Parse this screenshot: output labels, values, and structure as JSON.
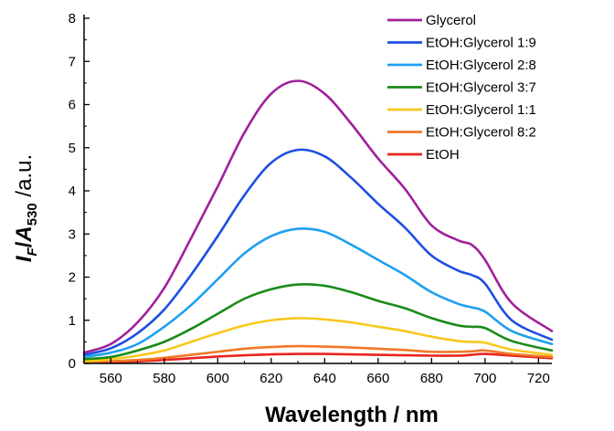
{
  "chart_data": {
    "type": "line",
    "xlabel": "Wavelength / nm",
    "ylabel": {
      "prefix": "I",
      "prefix_sub": "F",
      "slash": "/",
      "main": "A",
      "main_sub": "530",
      "unit": " /a.u."
    },
    "xlim": [
      550,
      725
    ],
    "ylim": [
      0,
      8
    ],
    "x_ticks": [
      560,
      580,
      600,
      620,
      640,
      660,
      680,
      700,
      720
    ],
    "y_ticks": [
      0,
      1,
      2,
      3,
      4,
      5,
      6,
      7,
      8
    ],
    "grid": false,
    "legend_position": "top-right",
    "series": [
      {
        "name": "Glycerol",
        "color": "#a1209c",
        "x": [
          550,
          560,
          570,
          580,
          590,
          600,
          610,
          620,
          630,
          640,
          650,
          660,
          670,
          680,
          690,
          695,
          700,
          710,
          725
        ],
        "y": [
          0.25,
          0.45,
          0.95,
          1.75,
          2.9,
          4.1,
          5.35,
          6.25,
          6.55,
          6.25,
          5.55,
          4.75,
          4.05,
          3.2,
          2.85,
          2.75,
          2.4,
          1.4,
          0.75
        ]
      },
      {
        "name": "EtOH:Glycerol 1:9",
        "color": "#1e4fe0",
        "x": [
          550,
          560,
          570,
          580,
          590,
          600,
          610,
          620,
          630,
          640,
          650,
          660,
          670,
          680,
          690,
          695,
          700,
          710,
          725
        ],
        "y": [
          0.2,
          0.35,
          0.7,
          1.25,
          2.05,
          2.95,
          3.9,
          4.65,
          4.95,
          4.8,
          4.3,
          3.7,
          3.15,
          2.5,
          2.15,
          2.05,
          1.85,
          1.0,
          0.55
        ]
      },
      {
        "name": "EtOH:Glycerol 2:8",
        "color": "#1ea0f0",
        "x": [
          550,
          560,
          570,
          580,
          590,
          600,
          610,
          620,
          630,
          640,
          650,
          660,
          670,
          680,
          690,
          695,
          700,
          710,
          725
        ],
        "y": [
          0.15,
          0.25,
          0.45,
          0.85,
          1.35,
          1.95,
          2.55,
          2.95,
          3.12,
          3.05,
          2.75,
          2.4,
          2.05,
          1.65,
          1.38,
          1.3,
          1.2,
          0.75,
          0.45
        ]
      },
      {
        "name": "EtOH:Glycerol 3:7",
        "color": "#1a8a1a",
        "x": [
          550,
          560,
          570,
          580,
          590,
          600,
          610,
          620,
          630,
          640,
          650,
          660,
          670,
          680,
          690,
          695,
          700,
          710,
          725
        ],
        "y": [
          0.1,
          0.15,
          0.3,
          0.5,
          0.8,
          1.15,
          1.5,
          1.72,
          1.83,
          1.8,
          1.65,
          1.45,
          1.28,
          1.05,
          0.88,
          0.85,
          0.82,
          0.52,
          0.3
        ]
      },
      {
        "name": "EtOH:Glycerol 1:1",
        "color": "#f7c81e",
        "x": [
          550,
          560,
          570,
          580,
          590,
          600,
          610,
          620,
          630,
          640,
          650,
          660,
          670,
          680,
          690,
          695,
          700,
          710,
          725
        ],
        "y": [
          0.05,
          0.1,
          0.18,
          0.3,
          0.5,
          0.7,
          0.88,
          1.0,
          1.05,
          1.02,
          0.95,
          0.85,
          0.75,
          0.62,
          0.52,
          0.5,
          0.48,
          0.32,
          0.2
        ]
      },
      {
        "name": "EtOH:Glycerol 8:2",
        "color": "#f07828",
        "x": [
          550,
          560,
          570,
          580,
          590,
          600,
          610,
          620,
          630,
          640,
          650,
          660,
          670,
          680,
          690,
          695,
          700,
          710,
          725
        ],
        "y": [
          0.03,
          0.05,
          0.08,
          0.13,
          0.2,
          0.27,
          0.34,
          0.38,
          0.4,
          0.39,
          0.37,
          0.34,
          0.31,
          0.27,
          0.27,
          0.28,
          0.3,
          0.22,
          0.15
        ]
      },
      {
        "name": "EtOH",
        "color": "#e8241e",
        "x": [
          550,
          560,
          570,
          580,
          590,
          600,
          610,
          620,
          630,
          640,
          650,
          660,
          670,
          680,
          690,
          695,
          700,
          710,
          725
        ],
        "y": [
          0.02,
          0.03,
          0.05,
          0.08,
          0.12,
          0.16,
          0.19,
          0.21,
          0.22,
          0.22,
          0.21,
          0.2,
          0.19,
          0.18,
          0.18,
          0.2,
          0.22,
          0.18,
          0.12
        ]
      }
    ]
  }
}
